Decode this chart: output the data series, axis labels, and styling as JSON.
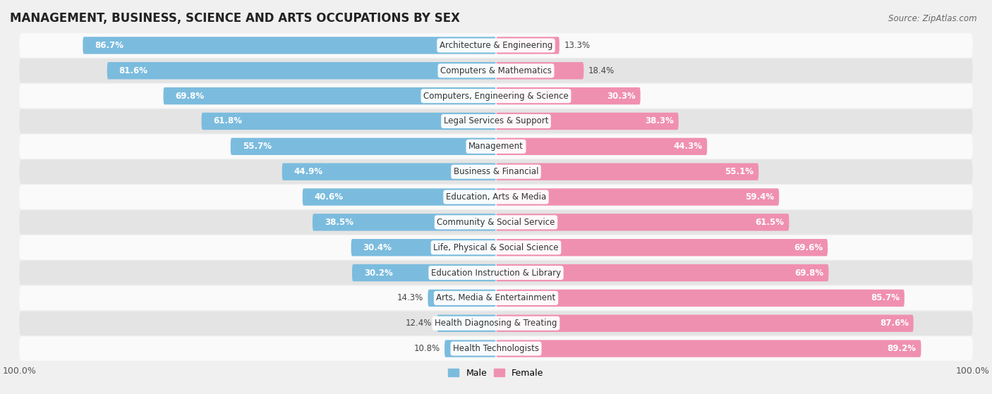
{
  "title": "MANAGEMENT, BUSINESS, SCIENCE AND ARTS OCCUPATIONS BY SEX",
  "source": "Source: ZipAtlas.com",
  "categories": [
    "Architecture & Engineering",
    "Computers & Mathematics",
    "Computers, Engineering & Science",
    "Legal Services & Support",
    "Management",
    "Business & Financial",
    "Education, Arts & Media",
    "Community & Social Service",
    "Life, Physical & Social Science",
    "Education Instruction & Library",
    "Arts, Media & Entertainment",
    "Health Diagnosing & Treating",
    "Health Technologists"
  ],
  "male": [
    86.7,
    81.6,
    69.8,
    61.8,
    55.7,
    44.9,
    40.6,
    38.5,
    30.4,
    30.2,
    14.3,
    12.4,
    10.8
  ],
  "female": [
    13.3,
    18.4,
    30.3,
    38.3,
    44.3,
    55.1,
    59.4,
    61.5,
    69.6,
    69.8,
    85.7,
    87.6,
    89.2
  ],
  "male_color": "#7bbcde",
  "female_color": "#f090b0",
  "bg_color": "#f0f0f0",
  "row_bg_light": "#fafafa",
  "row_bg_dark": "#e4e4e4",
  "bar_height": 0.68,
  "label_fontsize": 8.5,
  "title_fontsize": 12,
  "source_fontsize": 8.5,
  "value_fontsize": 8.5,
  "legend_fontsize": 9,
  "male_inside_threshold": 20,
  "female_inside_threshold": 20
}
